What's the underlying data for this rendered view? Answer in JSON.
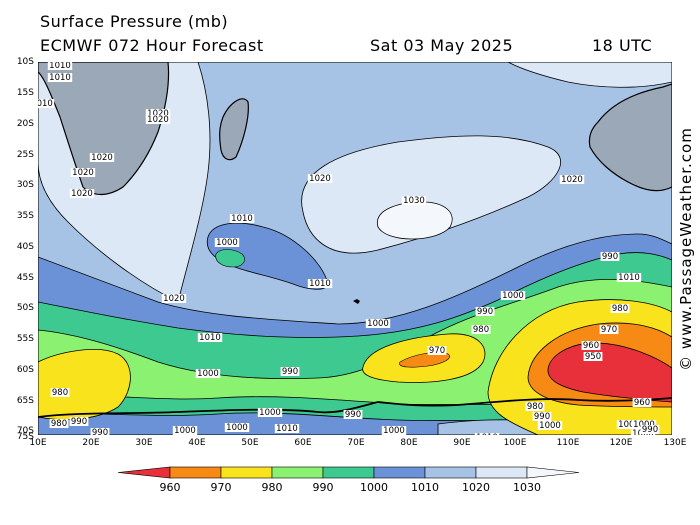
{
  "header": {
    "title": "Surface Pressure (mb)",
    "model_line": "ECMWF 072 Hour Forecast",
    "valid_date": "Sat 03 May 2025",
    "valid_time": "18 UTC"
  },
  "credit": "© www.PassageWeather.com",
  "axes": {
    "latitude_labels": [
      "10S",
      "15S",
      "20S",
      "25S",
      "30S",
      "35S",
      "40S",
      "45S",
      "50S",
      "55S",
      "60S",
      "65S",
      "70S",
      "75S"
    ],
    "longitude_labels": [
      "10E",
      "20E",
      "30E",
      "40E",
      "50E",
      "60E",
      "70E",
      "80E",
      "90E",
      "100E",
      "110E",
      "120E",
      "130E"
    ]
  },
  "legend": {
    "unit": "mb",
    "levels": [
      "960",
      "970",
      "980",
      "990",
      "1000",
      "1010",
      "1020",
      "1030"
    ],
    "colors": [
      "#e8303a",
      "#f68a14",
      "#f9e31c",
      "#8af270",
      "#3dc98f",
      "#6b91d6",
      "#a6c2e4",
      "#dce8f5",
      "#f4f8fc"
    ]
  },
  "isobar_labels": [
    {
      "text": "1010"
    },
    {
      "text": "1010"
    },
    {
      "text": "1010"
    },
    {
      "text": "1020"
    },
    {
      "text": "1020"
    },
    {
      "text": "1020"
    },
    {
      "text": "1020"
    },
    {
      "text": "1020"
    },
    {
      "text": "1020"
    },
    {
      "text": "1020"
    },
    {
      "text": "1030"
    },
    {
      "text": "1010"
    },
    {
      "text": "1000"
    },
    {
      "text": "1010"
    },
    {
      "text": "1020"
    },
    {
      "text": "1010"
    },
    {
      "text": "990"
    },
    {
      "text": "1000"
    },
    {
      "text": "990"
    },
    {
      "text": "1010"
    },
    {
      "text": "1000"
    },
    {
      "text": "1000"
    },
    {
      "text": "990"
    },
    {
      "text": "980"
    },
    {
      "text": "970"
    },
    {
      "text": "980"
    },
    {
      "text": "970"
    },
    {
      "text": "960"
    },
    {
      "text": "950"
    },
    {
      "text": "960"
    },
    {
      "text": "980"
    },
    {
      "text": "980"
    },
    {
      "text": "990"
    },
    {
      "text": "1000"
    },
    {
      "text": "1000"
    },
    {
      "text": "1000"
    },
    {
      "text": "1000"
    },
    {
      "text": "1000"
    },
    {
      "text": "1010"
    },
    {
      "text": "990"
    },
    {
      "text": "990"
    },
    {
      "text": "1000"
    },
    {
      "text": "1010"
    },
    {
      "text": "980"
    },
    {
      "text": "990"
    },
    {
      "text": "1000"
    },
    {
      "text": "1020"
    },
    {
      "text": "1010"
    },
    {
      "text": "1000"
    },
    {
      "text": "1000"
    },
    {
      "text": "1010"
    },
    {
      "text": "1000"
    },
    {
      "text": "990"
    },
    {
      "text": "1010"
    }
  ]
}
